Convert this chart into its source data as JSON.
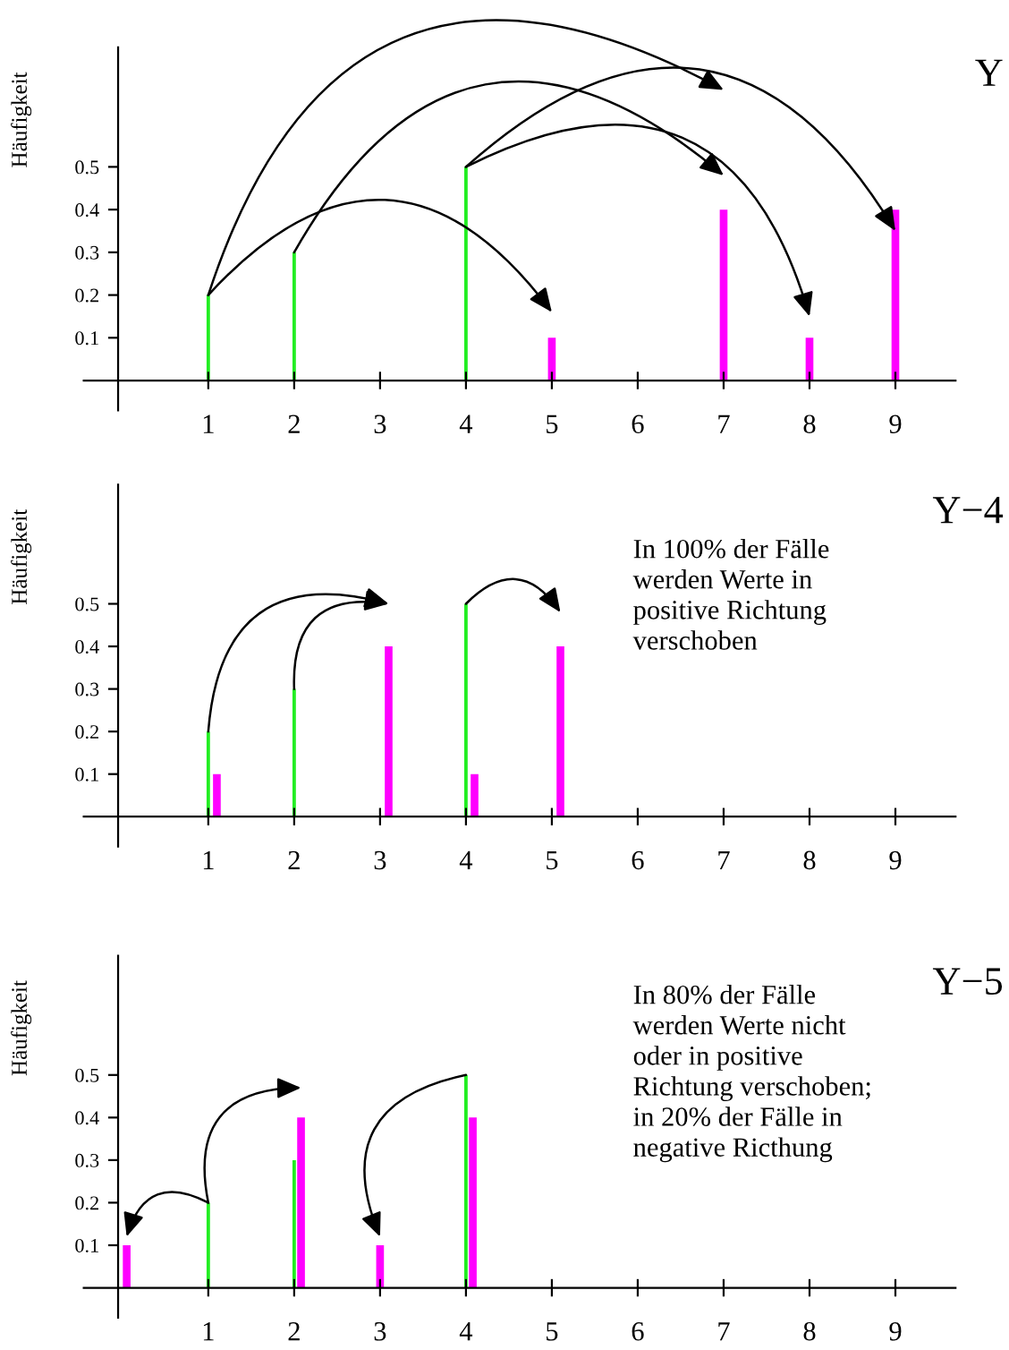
{
  "chart_data": [
    {
      "type": "bar",
      "title": "Y",
      "ylabel": "Häufigkeit",
      "xlim": [
        -0.45,
        9.7
      ],
      "ylim": [
        -0.07,
        0.78
      ],
      "xticks": [
        1,
        2,
        3,
        4,
        5,
        6,
        7,
        8,
        9
      ],
      "yticks": [
        0.1,
        0.2,
        0.3,
        0.4,
        0.5
      ],
      "grid": false,
      "series": [
        {
          "color": "#22ee22",
          "x": [
            1,
            2,
            4
          ],
          "values": [
            0.2,
            0.3,
            0.5
          ]
        },
        {
          "color": "#ff00ff",
          "x": [
            5,
            7,
            8,
            9
          ],
          "values": [
            0.1,
            0.4,
            0.1,
            0.4
          ]
        }
      ]
    },
    {
      "type": "bar",
      "title": "Y−4",
      "ylabel": "Häufigkeit",
      "xlim": [
        -0.45,
        9.7
      ],
      "ylim": [
        -0.07,
        0.78
      ],
      "xticks": [
        1,
        2,
        3,
        4,
        5,
        6,
        7,
        8,
        9
      ],
      "yticks": [
        0.1,
        0.2,
        0.3,
        0.4,
        0.5
      ],
      "grid": false,
      "annotations": [
        "In 100% der Fälle\nwerden Werte in\npositive Richtung\nverschoben"
      ],
      "series": [
        {
          "color": "#22ee22",
          "x": [
            1,
            2,
            4
          ],
          "values": [
            0.2,
            0.3,
            0.5
          ]
        },
        {
          "color": "#ff00ff",
          "x": [
            1.1,
            3.1,
            4.1,
            5.1
          ],
          "values": [
            0.1,
            0.4,
            0.1,
            0.4
          ]
        }
      ]
    },
    {
      "type": "bar",
      "title": "Y−5",
      "ylabel": "Häufigkeit",
      "xlim": [
        -0.45,
        9.7
      ],
      "ylim": [
        -0.07,
        0.78
      ],
      "xticks": [
        1,
        2,
        3,
        4,
        5,
        6,
        7,
        8,
        9
      ],
      "yticks": [
        0.1,
        0.2,
        0.3,
        0.4,
        0.5
      ],
      "grid": false,
      "annotations": [
        "In 80% der Fälle\nwerden Werte nicht\noder in positive\nRichtung verschoben;\nin 20% der Fälle in\nnegative Ricthung"
      ],
      "series": [
        {
          "color": "#22ee22",
          "x": [
            1,
            2,
            4
          ],
          "values": [
            0.2,
            0.3,
            0.5
          ]
        },
        {
          "color": "#ff00ff",
          "x": [
            0.05,
            2.08,
            3.0,
            4.08
          ],
          "values": [
            0.1,
            0.4,
            0.1,
            0.4
          ]
        }
      ]
    }
  ]
}
